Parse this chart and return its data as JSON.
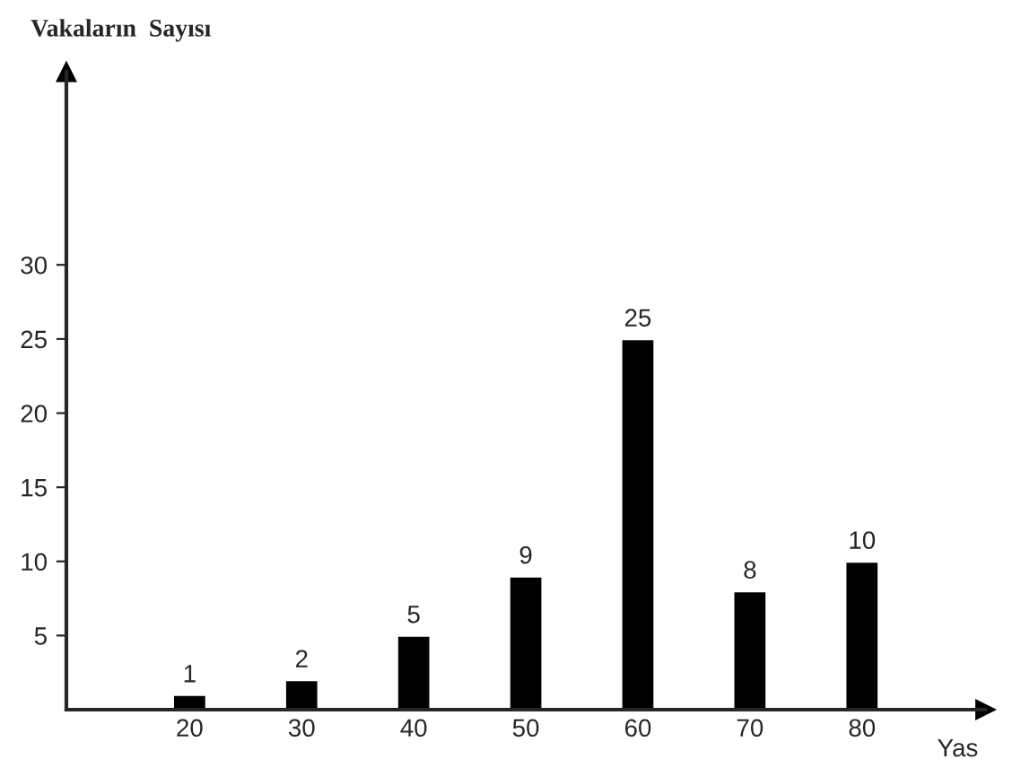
{
  "chart_data": {
    "type": "bar",
    "ylabel": "Vakaların  Sayısı",
    "xlabel": "Yas",
    "categories": [
      "20",
      "30",
      "40",
      "50",
      "60",
      "70",
      "80"
    ],
    "values": [
      1,
      2,
      5,
      9,
      25,
      8,
      10
    ],
    "color": "#000000",
    "data_labels": true,
    "ylim": [
      0,
      43
    ],
    "yticks": [
      5,
      10,
      15,
      20,
      25,
      30
    ],
    "grid": false,
    "legend": false
  }
}
